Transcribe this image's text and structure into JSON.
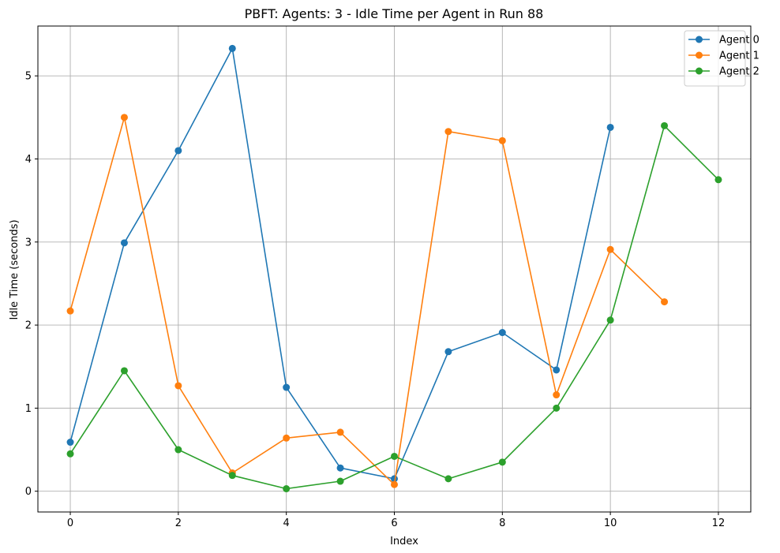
{
  "chart_data": {
    "type": "line",
    "title": "PBFT: Agents: 3 - Idle Time per Agent in Run 88",
    "xlabel": "Index",
    "ylabel": "Idle Time (seconds)",
    "xlim": [
      -0.6,
      12.6
    ],
    "ylim": [
      -0.25,
      5.6
    ],
    "xticks": [
      0,
      2,
      4,
      6,
      8,
      10,
      12
    ],
    "yticks": [
      0,
      1,
      2,
      3,
      4,
      5
    ],
    "grid": true,
    "legend_position": "top-right",
    "series": [
      {
        "name": "Agent 0",
        "color": "#1f77b4",
        "x": [
          0,
          1,
          2,
          3,
          4,
          5,
          6,
          7,
          8,
          9,
          10
        ],
        "y": [
          0.59,
          2.99,
          4.1,
          5.33,
          1.25,
          0.28,
          0.15,
          1.68,
          1.91,
          1.46,
          4.38
        ]
      },
      {
        "name": "Agent 1",
        "color": "#ff7f0e",
        "x": [
          0,
          1,
          2,
          3,
          4,
          5,
          6,
          7,
          8,
          9,
          10,
          11
        ],
        "y": [
          2.17,
          4.5,
          1.27,
          0.22,
          0.64,
          0.71,
          0.08,
          4.33,
          4.22,
          1.16,
          2.91,
          2.28
        ]
      },
      {
        "name": "Agent 2",
        "color": "#2ca02c",
        "x": [
          0,
          1,
          2,
          3,
          4,
          5,
          6,
          7,
          8,
          9,
          10,
          11,
          12
        ],
        "y": [
          0.45,
          1.45,
          0.5,
          0.19,
          0.03,
          0.12,
          0.42,
          0.15,
          0.35,
          1.0,
          2.06,
          4.4,
          3.75
        ]
      }
    ]
  }
}
